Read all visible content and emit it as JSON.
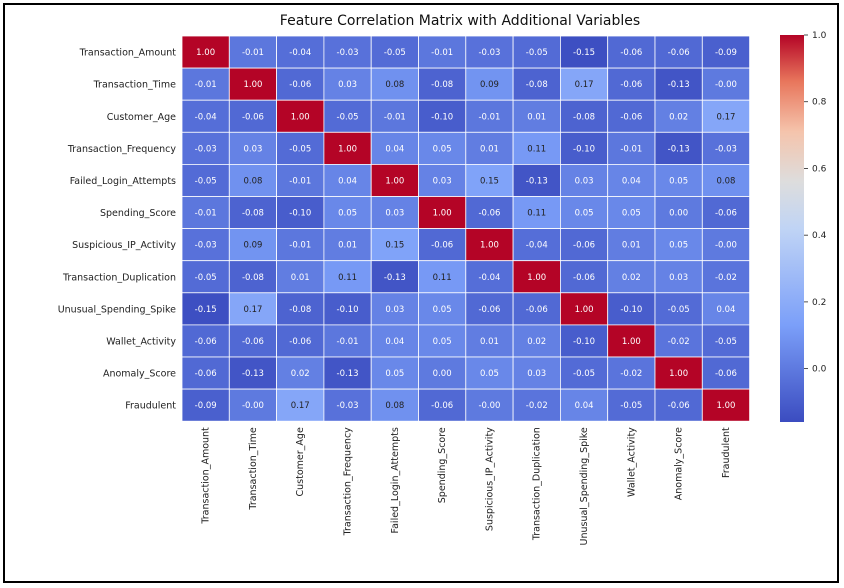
{
  "chart_data": {
    "type": "heatmap",
    "title": "Feature Correlation Matrix with Additional Variables",
    "labels": [
      "Transaction_Amount",
      "Transaction_Time",
      "Customer_Age",
      "Transaction_Frequency",
      "Failed_Login_Attempts",
      "Spending_Score",
      "Suspicious_IP_Activity",
      "Transaction_Duplication",
      "Unusual_Spending_Spike",
      "Wallet_Activity",
      "Anomaly_Score",
      "Fraudulent"
    ],
    "matrix": [
      [
        1.0,
        -0.01,
        -0.04,
        -0.03,
        -0.05,
        -0.01,
        -0.03,
        -0.05,
        -0.15,
        -0.06,
        -0.06,
        -0.09
      ],
      [
        -0.01,
        1.0,
        -0.06,
        0.03,
        0.08,
        -0.08,
        0.09,
        -0.08,
        0.17,
        -0.06,
        -0.13,
        -0.0
      ],
      [
        -0.04,
        -0.06,
        1.0,
        -0.05,
        -0.01,
        -0.1,
        -0.01,
        0.01,
        -0.08,
        -0.06,
        0.02,
        0.17
      ],
      [
        -0.03,
        0.03,
        -0.05,
        1.0,
        0.04,
        0.05,
        0.01,
        0.11,
        -0.1,
        -0.01,
        -0.13,
        -0.03
      ],
      [
        -0.05,
        0.08,
        -0.01,
        0.04,
        1.0,
        0.03,
        0.15,
        -0.13,
        0.03,
        0.04,
        0.05,
        0.08
      ],
      [
        -0.01,
        -0.08,
        -0.1,
        0.05,
        0.03,
        1.0,
        -0.06,
        0.11,
        0.05,
        0.05,
        0.0,
        -0.06
      ],
      [
        -0.03,
        0.09,
        -0.01,
        0.01,
        0.15,
        -0.06,
        1.0,
        -0.04,
        -0.06,
        0.01,
        0.05,
        -0.0
      ],
      [
        -0.05,
        -0.08,
        0.01,
        0.11,
        -0.13,
        0.11,
        -0.04,
        1.0,
        -0.06,
        0.02,
        0.03,
        -0.02
      ],
      [
        -0.15,
        0.17,
        -0.08,
        -0.1,
        0.03,
        0.05,
        -0.06,
        -0.06,
        1.0,
        -0.1,
        -0.05,
        0.04
      ],
      [
        -0.06,
        -0.06,
        -0.06,
        -0.01,
        0.04,
        0.05,
        0.01,
        0.02,
        -0.1,
        1.0,
        -0.02,
        -0.05
      ],
      [
        -0.06,
        -0.13,
        0.02,
        -0.13,
        0.05,
        0.0,
        0.05,
        0.03,
        -0.05,
        -0.02,
        1.0,
        -0.06
      ],
      [
        -0.09,
        -0.0,
        0.17,
        -0.03,
        0.08,
        -0.06,
        -0.0,
        -0.02,
        0.04,
        -0.05,
        -0.06,
        1.0
      ]
    ],
    "colorscale": "coolwarm",
    "vmin": -0.16,
    "vmax": 1.0,
    "colorbar_ticks": [
      0.0,
      0.2,
      0.4,
      0.6,
      0.8,
      1.0
    ],
    "colorbar_tick_labels": [
      "0.0",
      "0.2",
      "0.4",
      "0.6",
      "0.8",
      "1.0"
    ],
    "annotation_format": "0.00",
    "grid_lines": "white",
    "legend": "colorbar-right"
  }
}
